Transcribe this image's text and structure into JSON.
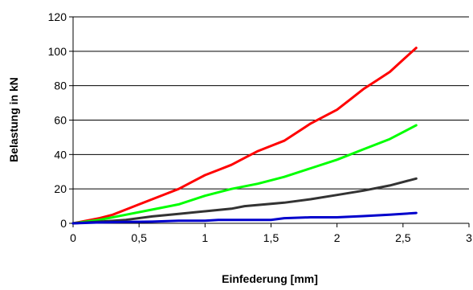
{
  "chart_data": {
    "type": "line",
    "xlabel": "Einfederung [mm]",
    "ylabel": "Belastung in kN",
    "xlim": [
      0,
      3
    ],
    "ylim": [
      0,
      120
    ],
    "x_ticks": [
      "0",
      "0,5",
      "1",
      "1,5",
      "2",
      "2,5",
      "3"
    ],
    "y_ticks": [
      "0",
      "20",
      "40",
      "60",
      "80",
      "100",
      "120"
    ],
    "grid": "horizontal",
    "legend": "none",
    "series": [
      {
        "color": "#ff0000",
        "points": [
          [
            0,
            0
          ],
          [
            0.2,
            3
          ],
          [
            0.3,
            5
          ],
          [
            0.4,
            8
          ],
          [
            0.5,
            11
          ],
          [
            0.6,
            14
          ],
          [
            0.7,
            17
          ],
          [
            0.8,
            20
          ],
          [
            0.9,
            24
          ],
          [
            1.0,
            28
          ],
          [
            1.1,
            31
          ],
          [
            1.2,
            34
          ],
          [
            1.3,
            38
          ],
          [
            1.4,
            42
          ],
          [
            1.5,
            45
          ],
          [
            1.6,
            48
          ],
          [
            1.7,
            53
          ],
          [
            1.8,
            58
          ],
          [
            1.9,
            62
          ],
          [
            2.0,
            66
          ],
          [
            2.1,
            72
          ],
          [
            2.2,
            78
          ],
          [
            2.3,
            83
          ],
          [
            2.4,
            88
          ],
          [
            2.5,
            95
          ],
          [
            2.6,
            102
          ]
        ]
      },
      {
        "color": "#00ff00",
        "points": [
          [
            0,
            0
          ],
          [
            0.2,
            2
          ],
          [
            0.4,
            5
          ],
          [
            0.6,
            8
          ],
          [
            0.8,
            11
          ],
          [
            1.0,
            16
          ],
          [
            1.2,
            20
          ],
          [
            1.4,
            23
          ],
          [
            1.6,
            27
          ],
          [
            1.8,
            32
          ],
          [
            2.0,
            37
          ],
          [
            2.2,
            43
          ],
          [
            2.4,
            49
          ],
          [
            2.6,
            57
          ]
        ]
      },
      {
        "color": "#333333",
        "points": [
          [
            0,
            0
          ],
          [
            0.2,
            1
          ],
          [
            0.4,
            2
          ],
          [
            0.6,
            4
          ],
          [
            0.8,
            5.5
          ],
          [
            1.0,
            7
          ],
          [
            1.2,
            8.5
          ],
          [
            1.3,
            10
          ],
          [
            1.6,
            12
          ],
          [
            1.8,
            14
          ],
          [
            2.0,
            16.5
          ],
          [
            2.2,
            19
          ],
          [
            2.4,
            22
          ],
          [
            2.6,
            26
          ]
        ]
      },
      {
        "color": "#0000cc",
        "points": [
          [
            0,
            0
          ],
          [
            0.2,
            0.5
          ],
          [
            0.4,
            0.8
          ],
          [
            0.6,
            1
          ],
          [
            0.8,
            1.5
          ],
          [
            1.0,
            1.5
          ],
          [
            1.1,
            2
          ],
          [
            1.3,
            2
          ],
          [
            1.5,
            2
          ],
          [
            1.6,
            3
          ],
          [
            1.8,
            3.5
          ],
          [
            2.0,
            3.5
          ],
          [
            2.2,
            4.2
          ],
          [
            2.4,
            5
          ],
          [
            2.6,
            6
          ]
        ]
      }
    ]
  }
}
